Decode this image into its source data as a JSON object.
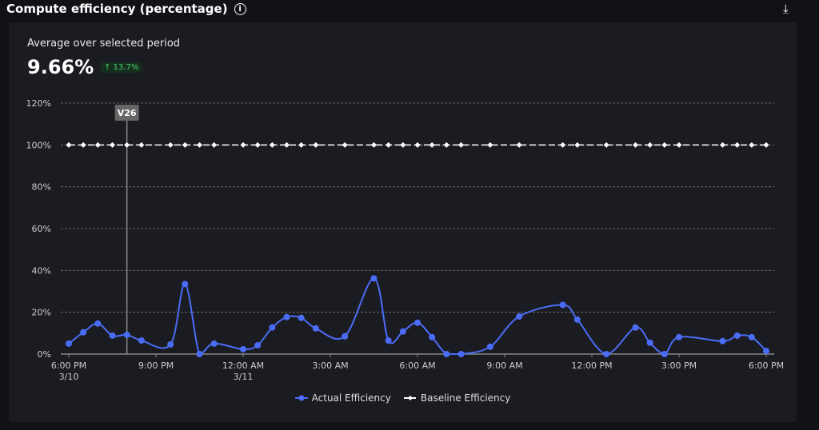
{
  "header": {
    "title": "Compute efficiency (percentage)",
    "info_icon": "info-icon",
    "download_icon": "download-icon"
  },
  "summary": {
    "label": "Average over selected period",
    "value": "9.66%",
    "change": "↑ 13.7%",
    "change_color": "#4cc76a"
  },
  "chart_data": {
    "type": "line",
    "ylim": [
      0,
      120
    ],
    "yticks": [
      "0%",
      "20%",
      "40%",
      "60%",
      "80%",
      "100%",
      "120%"
    ],
    "ytick_values": [
      0,
      20,
      40,
      60,
      80,
      100,
      120
    ],
    "xticks": [
      {
        "h": 0,
        "label": "6:00 PM",
        "sub": "3/10"
      },
      {
        "h": 3,
        "label": "9:00 PM",
        "sub": ""
      },
      {
        "h": 6,
        "label": "12:00 AM",
        "sub": "3/11"
      },
      {
        "h": 9,
        "label": "3:00 AM",
        "sub": ""
      },
      {
        "h": 12,
        "label": "6:00 AM",
        "sub": ""
      },
      {
        "h": 15,
        "label": "9:00 AM",
        "sub": ""
      },
      {
        "h": 18,
        "label": "12:00 PM",
        "sub": ""
      },
      {
        "h": 21,
        "label": "3:00 PM",
        "sub": ""
      },
      {
        "h": 24,
        "label": "6:00 PM",
        "sub": ""
      }
    ],
    "xlim_hours_from_3_10_6pm": [
      0,
      24
    ],
    "grid": true,
    "legend_position": "bottom",
    "annotation": {
      "label": "V26",
      "h": 2
    },
    "series": [
      {
        "name": "Actual Efficiency",
        "color": "#4a6cf7",
        "x": [
          0,
          0.5,
          1,
          1.5,
          2,
          2.5,
          3.5,
          4,
          4.5,
          5,
          6,
          6.5,
          7,
          7.5,
          8,
          8.5,
          9.5,
          10.5,
          11,
          11.5,
          12,
          12.5,
          13,
          13.5,
          14.5,
          15.5,
          17,
          17.5,
          18.5,
          19.5,
          20,
          20.5,
          21,
          22.5,
          23,
          23.5,
          24
        ],
        "values": [
          5,
          10.4,
          14.6,
          8.8,
          9.2,
          6.5,
          4.6,
          33.5,
          0,
          5,
          2.3,
          4.2,
          12.7,
          17.7,
          17.3,
          12.3,
          8.5,
          36.2,
          6.5,
          10.8,
          15,
          8.1,
          0,
          0,
          3.5,
          18,
          23.5,
          16.5,
          0,
          12.7,
          5.4,
          0,
          8.1,
          6.2,
          8.8,
          8.1,
          1.5
        ]
      },
      {
        "name": "Baseline Efficiency",
        "color": "#ffffff",
        "x": [
          0,
          0.5,
          1,
          1.5,
          2,
          2.5,
          3.5,
          4,
          4.5,
          5,
          6,
          6.5,
          7,
          7.5,
          8,
          8.5,
          9.5,
          10.5,
          11,
          11.5,
          12,
          12.5,
          13,
          13.5,
          14.5,
          15.5,
          17,
          17.5,
          18.5,
          19.5,
          20,
          20.5,
          21,
          22.5,
          23,
          23.5,
          24
        ],
        "values": [
          100,
          100,
          100,
          100,
          100,
          100,
          100,
          100,
          100,
          100,
          100,
          100,
          100,
          100,
          100,
          100,
          100,
          100,
          100,
          100,
          100,
          100,
          100,
          100,
          100,
          100,
          100,
          100,
          100,
          100,
          100,
          100,
          100,
          100,
          100,
          100,
          100
        ]
      }
    ]
  }
}
